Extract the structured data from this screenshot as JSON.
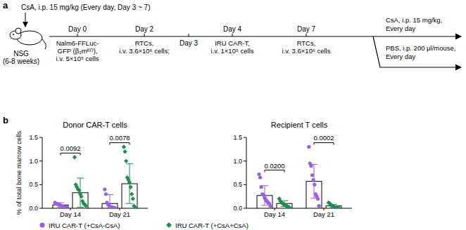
{
  "panel_a": {
    "label": "a",
    "treatment_note": "CsA, i.p. 15 mg/kg (Every day, Day 3 ~ 7)",
    "mouse": [
      "NSG",
      "(6-8 weeks)"
    ],
    "timeline": [
      {
        "day": "Day 0",
        "lines": [
          "Nalm6-FFLuc-",
          "GFP (β₂mᴷᴼ),",
          "i.v. 5×10⁵ cells"
        ]
      },
      {
        "day": "Day 2",
        "lines": [
          "RTCs,",
          "i.v. 3.6×10⁶ cells;"
        ]
      },
      {
        "day": "Day 3",
        "lines": []
      },
      {
        "day": "Day 4",
        "lines": [
          "IRU CAR-T,",
          "i.v. 1×10⁵ cells"
        ]
      },
      {
        "day": "Day 7",
        "lines": [
          "RTCs,",
          "i.v. 3.6×10⁶ cells"
        ]
      }
    ],
    "branches": [
      {
        "lines": [
          "CsA, i.p. 15 mg/kg,",
          "Every day"
        ]
      },
      {
        "lines": [
          "PBS, i.p. 200 μl/mouse,",
          "Every day"
        ]
      }
    ]
  },
  "panel_b_label": "b",
  "chart_data": [
    {
      "type": "bar",
      "title": "Donor CAR-T cells",
      "y_label": "% of total bone marrow cells",
      "categories": [
        "Day 14",
        "Day 21"
      ],
      "ylim": [
        0,
        1.5
      ],
      "yticks": [
        {
          "value": 0,
          "label": "0.0"
        },
        {
          "value": 0.5,
          "label": "0.5"
        },
        {
          "value": 1,
          "label": "1.0"
        },
        {
          "value": 1.5,
          "label": "1.5"
        }
      ],
      "p_values": [
        "0.0092",
        "0.0078"
      ],
      "legend": "bottom",
      "series": [
        {
          "name": "IRU CAR-T (+CsA-CsA)",
          "color": "#9b5de5",
          "marker": "circle",
          "values": [
            0.07,
            0.1
          ],
          "error": [
            0.05,
            0.19
          ],
          "points": [
            [
              0.12,
              0.1,
              0.09,
              0.08,
              0.07,
              0.06,
              0.05,
              0.04,
              0.03,
              0.02,
              0.02
            ],
            [
              0.4,
              0.3,
              0.12,
              0.08,
              0.05,
              0.03,
              0.02,
              0.02,
              0.01,
              0.01
            ]
          ]
        },
        {
          "name": "IRU CAR-T (+CsA+CsA)",
          "color": "#1f8f4e",
          "marker": "diamond",
          "values": [
            0.33,
            0.52
          ],
          "error": [
            0.31,
            0.42
          ],
          "points": [
            [
              1.08,
              0.5,
              0.45,
              0.4,
              0.38,
              0.3,
              0.25,
              0.15,
              0.1,
              0.08,
              0.05
            ],
            [
              1.3,
              1.2,
              1.0,
              0.65,
              0.6,
              0.55,
              0.45,
              0.3,
              0.2,
              0.05,
              0.02
            ]
          ]
        }
      ]
    },
    {
      "type": "bar",
      "title": "Recipient T cells",
      "categories": [
        "Day 14",
        "Day 21"
      ],
      "ylim": [
        0,
        1.5
      ],
      "yticks": [
        {
          "value": 0,
          "label": "0.0"
        },
        {
          "value": 0.5,
          "label": "0.5"
        },
        {
          "value": 1,
          "label": "1.0"
        },
        {
          "value": 1.5,
          "label": "1.5"
        }
      ],
      "p_values": [
        "0.0200",
        "0.0002"
      ],
      "series": [
        {
          "color": "#9b5de5",
          "marker": "circle",
          "values": [
            0.27,
            0.57
          ],
          "error": [
            0.21,
            0.36
          ],
          "points": [
            [
              0.72,
              0.65,
              0.45,
              0.3,
              0.28,
              0.22,
              0.18,
              0.15,
              0.12,
              0.1,
              0.05
            ],
            [
              1.3,
              0.95,
              0.9,
              0.7,
              0.6,
              0.5,
              0.3,
              0.25,
              0.2,
              0.05
            ]
          ]
        },
        {
          "color": "#1f8f4e",
          "marker": "diamond",
          "values": [
            0.1,
            0.05
          ],
          "error": [
            0.06,
            0.03
          ],
          "points": [
            [
              0.2,
              0.15,
              0.12,
              0.1,
              0.08,
              0.07,
              0.05,
              0.04,
              0.03,
              0.02
            ],
            [
              0.12,
              0.1,
              0.08,
              0.05,
              0.04,
              0.03,
              0.02,
              0.02,
              0.01,
              0.01
            ]
          ]
        }
      ]
    }
  ]
}
